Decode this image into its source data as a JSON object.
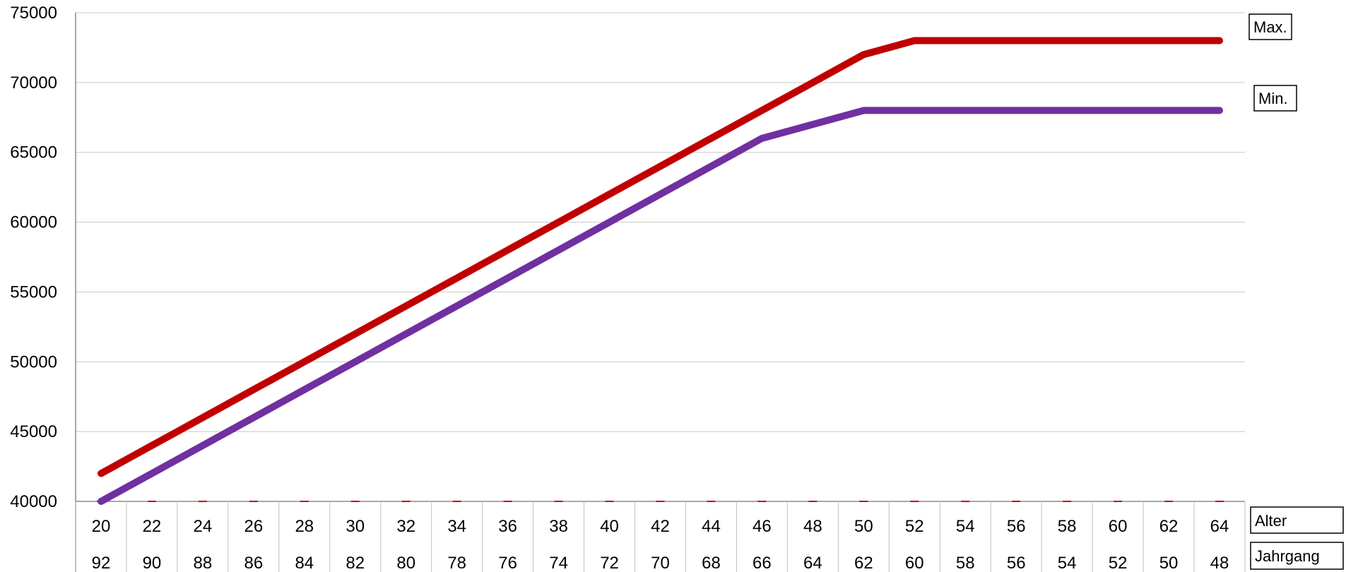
{
  "chart_data": {
    "type": "line",
    "x": [
      20,
      22,
      24,
      26,
      28,
      30,
      32,
      34,
      36,
      38,
      40,
      42,
      44,
      46,
      48,
      50,
      52,
      54,
      56,
      58,
      60,
      62,
      64
    ],
    "categories_secondary": [
      "92",
      "90",
      "88",
      "86",
      "84",
      "82",
      "80",
      "78",
      "76",
      "74",
      "72",
      "70",
      "68",
      "66",
      "64",
      "62",
      "60",
      "58",
      "56",
      "54",
      "52",
      "50",
      "48"
    ],
    "series": [
      {
        "name": "Max.",
        "color": "#c00000",
        "values": [
          42000,
          44000,
          46000,
          48000,
          50000,
          52000,
          54000,
          56000,
          58000,
          60000,
          62000,
          64000,
          66000,
          68000,
          70000,
          72000,
          73000,
          73000,
          73000,
          73000,
          73000,
          73000,
          73000
        ]
      },
      {
        "name": "Min.",
        "color": "#7030a0",
        "values": [
          40000,
          42000,
          44000,
          46000,
          48000,
          50000,
          52000,
          54000,
          56000,
          58000,
          60000,
          62000,
          64000,
          66000,
          67000,
          68000,
          68000,
          68000,
          68000,
          68000,
          68000,
          68000,
          68000
        ]
      }
    ],
    "yticks": [
      "40000",
      "45000",
      "50000",
      "55000",
      "60000",
      "65000",
      "70000",
      "75000"
    ],
    "ylim": [
      40000,
      75000
    ],
    "table_row_labels": [
      "Alter",
      "Jahrgang"
    ],
    "grid": true,
    "legend_position": "right"
  }
}
